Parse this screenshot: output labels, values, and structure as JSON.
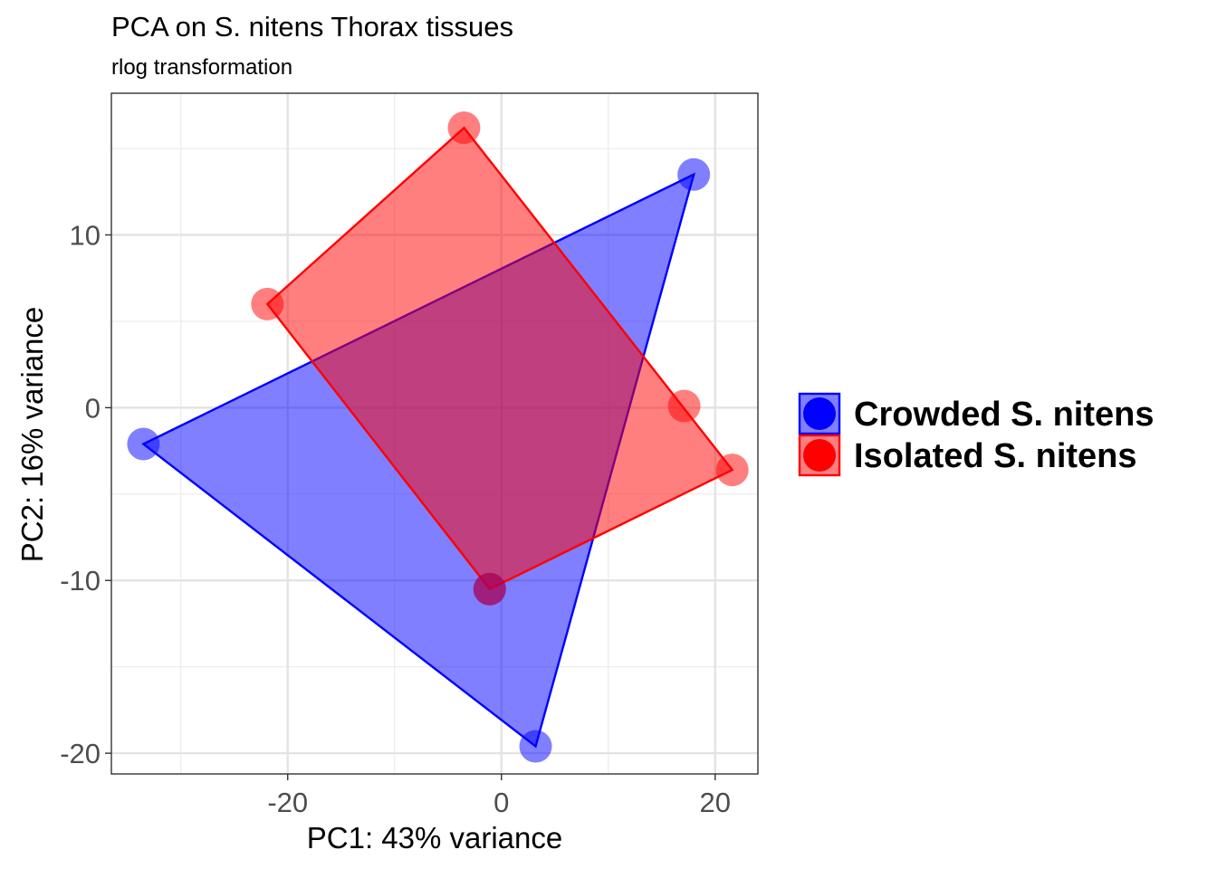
{
  "chart_data": {
    "type": "scatter",
    "title": "PCA on S. nitens Thorax tissues",
    "subtitle": "rlog transformation",
    "xlabel": "PC1: 43% variance",
    "ylabel": "PC2: 16% variance",
    "xlim": [
      -36.5,
      24
    ],
    "ylim": [
      -21.2,
      18.2
    ],
    "xticks": [
      -20,
      0,
      20
    ],
    "xtick_labels": [
      "-20",
      "0",
      "20"
    ],
    "yticks": [
      -20,
      -10,
      0,
      10
    ],
    "ytick_labels": [
      "-20",
      "-10",
      "0",
      "10"
    ],
    "grid": true,
    "legend_position": "right",
    "series": [
      {
        "name": "Crowded S. nitens",
        "color": "#0000ff",
        "fill_opacity": 0.5,
        "points": [
          {
            "x": -33.5,
            "y": -2.1
          },
          {
            "x": 18.0,
            "y": 13.5
          },
          {
            "x": 3.2,
            "y": -19.6
          },
          {
            "x": -1.1,
            "y": -10.5
          }
        ],
        "hull": [
          0,
          1,
          2
        ]
      },
      {
        "name": "Isolated S. nitens",
        "color": "#ff0000",
        "fill_opacity": 0.5,
        "points": [
          {
            "x": -21.9,
            "y": 6.0
          },
          {
            "x": -3.5,
            "y": 16.2
          },
          {
            "x": 17.1,
            "y": 0.1
          },
          {
            "x": 21.6,
            "y": -3.6
          },
          {
            "x": -1.1,
            "y": -10.5
          }
        ],
        "hull": [
          0,
          1,
          3,
          4
        ]
      }
    ]
  }
}
